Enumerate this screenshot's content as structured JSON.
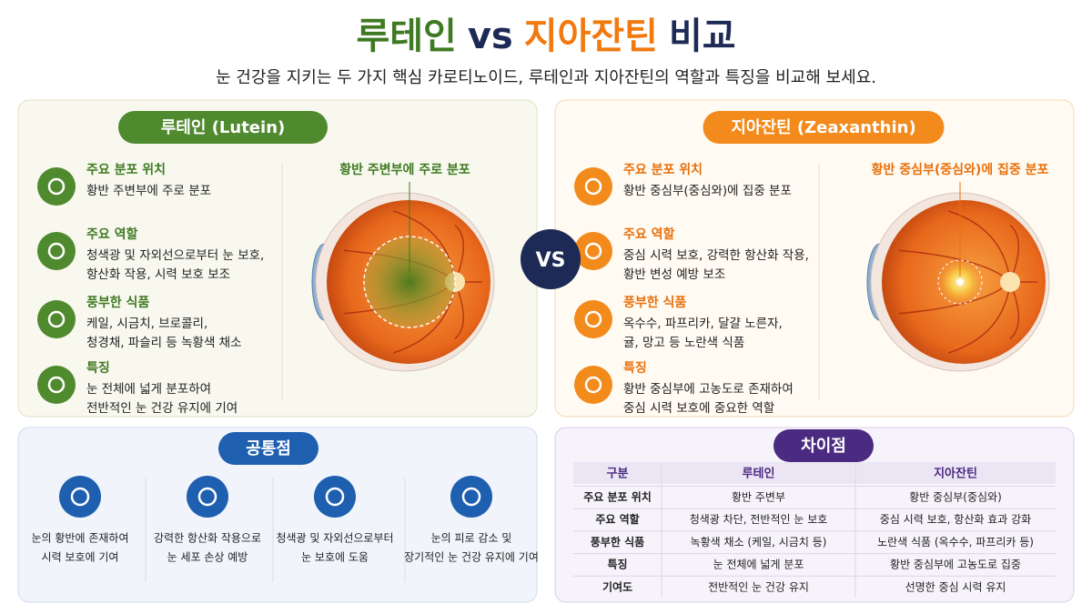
{
  "title": {
    "parts": [
      "루테인",
      "vs",
      "지아잔틴",
      "비교"
    ]
  },
  "subtitle": "눈 건강을 지키는 두 가지 핵심 카로티노이드, 루테인과 지아잔틴의 역할과 특징을 비교해 보세요.",
  "lutein": {
    "badge": "루테인 (Lutein)",
    "eye_label": "황반 주변부에 주로 분포",
    "items": [
      {
        "heading": "주요 분포 위치",
        "lines": [
          "황반 주변부에 주로 분포"
        ]
      },
      {
        "heading": "주요 역할",
        "lines": [
          "청색광 및 자외선으로부터 눈 보호,",
          "항산화 작용, 시력 보호 보조"
        ]
      },
      {
        "heading": "풍부한 식품",
        "lines": [
          "케일, 시금치, 브로콜리,",
          "청경채, 파슬리 등 녹황색 채소"
        ]
      },
      {
        "heading": "특징",
        "lines": [
          "눈 전체에 넓게 분포하여",
          "전반적인 눈 건강 유지에 기여"
        ]
      }
    ]
  },
  "vs": "VS",
  "zeaxanthin": {
    "badge": "지아잔틴 (Zeaxanthin)",
    "eye_label": "황반 중심부(중심와)에 집중 분포",
    "items": [
      {
        "heading": "주요 분포 위치",
        "lines": [
          "황반 중심부(중심와)에 집중 분포"
        ]
      },
      {
        "heading": "주요 역할",
        "lines": [
          "중심 시력 보호, 강력한 항산화 작용,",
          "황반 변성 예방 보조"
        ]
      },
      {
        "heading": "풍부한 식품",
        "lines": [
          "옥수수, 파프리카, 달걀 노른자,",
          "귤, 망고 등 노란색 식품"
        ]
      },
      {
        "heading": "특징",
        "lines": [
          "황반 중심부에 고농도로 존재하여",
          "중심 시력 보호에 중요한 역할"
        ]
      }
    ]
  },
  "common": {
    "title": "공통점",
    "items": [
      {
        "lines": [
          "눈의 황반에 존재하여",
          "시력 보호에 기여"
        ]
      },
      {
        "lines": [
          "강력한 항산화 작용으로",
          "눈 세포 손상 예방"
        ]
      },
      {
        "lines": [
          "청색광 및 자외선으로부터",
          "눈 보호에 도움"
        ]
      },
      {
        "lines": [
          "눈의 피로 감소 및",
          "장기적인 눈 건강 유지에 기여"
        ]
      }
    ]
  },
  "differences": {
    "title": "차이점",
    "header": [
      "구분",
      "루테인",
      "지아잔틴"
    ],
    "rows": [
      [
        "주요 분포 위치",
        "황반 주변부",
        "황반 중심부(중심와)"
      ],
      [
        "주요 역할",
        "청색광 차단, 전반적인 눈 보호",
        "중심 시력 보호, 항산화 효과 강화"
      ],
      [
        "풍부한 식품",
        "녹황색 채소 (케일, 시금치 등)",
        "노란색 식품 (옥수수, 파프리카 등)"
      ],
      [
        "특징",
        "눈 전체에 넓게 분포",
        "황반 중심부에 고농도로 집중"
      ],
      [
        "기여도",
        "전반적인 눈 건강 유지",
        "선명한 중심 시력 유지"
      ]
    ]
  }
}
